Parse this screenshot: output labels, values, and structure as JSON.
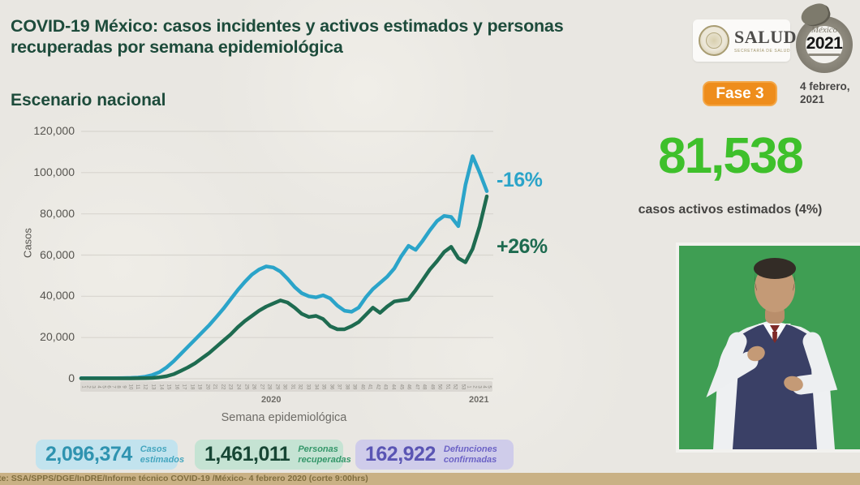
{
  "slide": {
    "title": "COVID-19 México: casos incidentes y activos estimados y personas recuperadas por semana epidemiológica",
    "section_title": "Escenario nacional",
    "phase_badge": "Fase 3",
    "date_line1": "4 febrero,",
    "date_line2": "2021",
    "source_line": "te: SSA/SPPS/DGE/InDRE/Informe técnico COVID-19 /México- 4 febrero 2020 (corte 9:00hrs)"
  },
  "logos": {
    "salud": "SALUD",
    "salud_sub": "SECRETARÍA DE SALUD",
    "mexico2021_script": "México",
    "mexico2021_year": "2021"
  },
  "headline": {
    "value": "81,538",
    "label": "casos activos estimados (4%)"
  },
  "stats": [
    {
      "value": "2,096,374",
      "label": "Casos estimados",
      "bg": "#c2e3ee",
      "value_color": "#2f93b0",
      "label_color": "#45a6bf"
    },
    {
      "value": "1,461,011",
      "label": "Personas recuperadas",
      "bg": "#c5e3d3",
      "value_color": "#174634",
      "label_color": "#35976a"
    },
    {
      "value": "162,922",
      "label": "Defunciones confirmadas",
      "bg": "#cfccea",
      "value_color": "#5a55b4",
      "label_color": "#6c63c6"
    }
  ],
  "chart_data": {
    "type": "line",
    "title": "Escenario nacional",
    "xlabel": "Semana epidemiológica",
    "ylabel": "Casos",
    "ylim": [
      0,
      120000
    ],
    "ytick_step": 20000,
    "grid": true,
    "legend": "none",
    "x_year_labels": [
      "2020",
      "2021"
    ],
    "week_labels": [
      1,
      2,
      3,
      4,
      5,
      6,
      7,
      8,
      9,
      10,
      11,
      12,
      13,
      14,
      15,
      16,
      17,
      18,
      19,
      20,
      21,
      22,
      23,
      24,
      25,
      26,
      27,
      28,
      29,
      30,
      31,
      32,
      33,
      34,
      35,
      36,
      37,
      38,
      39,
      40,
      41,
      42,
      43,
      44,
      45,
      46,
      47,
      48,
      49,
      50,
      51,
      52,
      53,
      1,
      2,
      3,
      4,
      5
    ],
    "series": [
      {
        "name": "Casos estimados",
        "color": "#2ba4c9",
        "values": [
          300,
          300,
          300,
          300,
          300,
          300,
          350,
          450,
          600,
          1000,
          1800,
          3200,
          5500,
          8500,
          12000,
          15500,
          19000,
          22500,
          26000,
          30000,
          34000,
          38500,
          43000,
          47000,
          50500,
          53000,
          54500,
          54000,
          52000,
          48500,
          44500,
          41500,
          40000,
          39500,
          40500,
          39000,
          35500,
          33000,
          32500,
          34500,
          39500,
          43500,
          46500,
          49500,
          53500,
          59500,
          64500,
          62500,
          67000,
          72000,
          76500,
          79000,
          78500,
          74000,
          94000,
          108000,
          100000,
          91000
        ]
      },
      {
        "name": "Personas recuperadas",
        "color": "#1e6b50",
        "values": [
          200,
          200,
          200,
          200,
          200,
          200,
          200,
          200,
          250,
          300,
          400,
          700,
          1200,
          2200,
          3800,
          5500,
          7500,
          10000,
          12500,
          15500,
          18500,
          21500,
          25000,
          28000,
          30500,
          33000,
          35000,
          36500,
          38000,
          37000,
          34500,
          31500,
          30000,
          30500,
          29000,
          25500,
          24000,
          24000,
          25500,
          27500,
          31000,
          34500,
          32000,
          35000,
          37500,
          38000,
          38500,
          43000,
          48000,
          53000,
          57000,
          61500,
          64000,
          58500,
          56500,
          63000,
          74000,
          88500
        ]
      }
    ],
    "annotations": [
      {
        "text": "-16%",
        "series": "Casos estimados",
        "color": "#2ba4c9"
      },
      {
        "text": "+26%",
        "series": "Personas recuperadas",
        "color": "#1e6b50"
      }
    ]
  }
}
